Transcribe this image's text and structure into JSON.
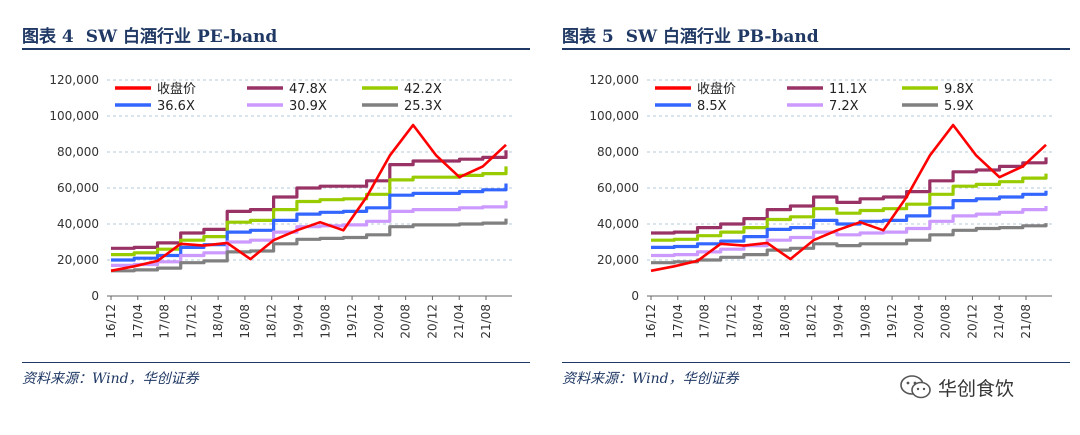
{
  "figures": [
    {
      "num_label": "图表 4",
      "title": "SW 白酒行业 PE-band",
      "source": "资料来源：Wind，华创证券"
    },
    {
      "num_label": "图表 5",
      "title": "SW 白酒行业 PB-band",
      "source": "资料来源：Wind，华创证券"
    }
  ],
  "watermark": {
    "text": "华创食饮",
    "icon": "wechat-icon"
  },
  "chart_data": [
    {
      "type": "line",
      "x_ticks": [
        "16/12",
        "17/04",
        "17/08",
        "17/12",
        "18/04",
        "18/08",
        "18/12",
        "19/04",
        "19/08",
        "19/12",
        "20/04",
        "20/08",
        "20/12",
        "21/04",
        "21/08"
      ],
      "y_ticks": [
        "0",
        "20,000",
        "40,000",
        "60,000",
        "80,000",
        "100,000",
        "120,000"
      ],
      "ylim": [
        0,
        120000
      ],
      "grid": true,
      "legend_position": "top-left",
      "series": [
        {
          "name": "收盘价",
          "color": "#ff0000",
          "values": [
            14000,
            16500,
            19500,
            29000,
            28000,
            29500,
            20500,
            31000,
            36500,
            41000,
            36500,
            55000,
            78000,
            95000,
            78000,
            66000,
            72000,
            84000
          ]
        },
        {
          "name": "47.8X",
          "color": "#993366",
          "values": [
            26500,
            27000,
            29500,
            35000,
            37000,
            47000,
            48000,
            55000,
            60000,
            61000,
            61000,
            64000,
            73000,
            75000,
            75000,
            76000,
            77000,
            81000
          ]
        },
        {
          "name": "42.2X",
          "color": "#99cc00",
          "values": [
            23000,
            24000,
            26000,
            31000,
            33000,
            41000,
            42000,
            48000,
            52500,
            53500,
            54000,
            56500,
            64500,
            66000,
            66000,
            67000,
            68000,
            72000
          ]
        },
        {
          "name": "36.6X",
          "color": "#3366ff",
          "values": [
            20000,
            21000,
            22500,
            27000,
            28500,
            35500,
            36500,
            42000,
            45500,
            46500,
            47000,
            49000,
            56000,
            57000,
            57000,
            58000,
            59000,
            62500
          ]
        },
        {
          "name": "30.9X",
          "color": "#cc99ff",
          "values": [
            17000,
            17500,
            19000,
            22500,
            24000,
            30000,
            31000,
            35500,
            38500,
            39000,
            39500,
            41500,
            47000,
            48000,
            48000,
            49000,
            49500,
            53000
          ]
        },
        {
          "name": "25.3X",
          "color": "#808080",
          "values": [
            14000,
            14500,
            15500,
            18500,
            19500,
            24500,
            25000,
            29000,
            31500,
            32000,
            32500,
            34000,
            38500,
            39500,
            39500,
            40000,
            40500,
            43000
          ]
        }
      ]
    },
    {
      "type": "line",
      "x_ticks": [
        "16/12",
        "17/04",
        "17/08",
        "17/12",
        "18/04",
        "18/08",
        "18/12",
        "19/04",
        "19/08",
        "19/12",
        "20/04",
        "20/08",
        "20/12",
        "21/04",
        "21/08"
      ],
      "y_ticks": [
        "0",
        "20,000",
        "40,000",
        "60,000",
        "80,000",
        "100,000",
        "120,000"
      ],
      "ylim": [
        0,
        120000
      ],
      "grid": true,
      "legend_position": "top-left",
      "series": [
        {
          "name": "收盘价",
          "color": "#ff0000",
          "values": [
            14000,
            16500,
            19500,
            29000,
            28000,
            29500,
            20500,
            31000,
            36500,
            41000,
            36500,
            55000,
            78000,
            95000,
            78000,
            66000,
            72000,
            84000
          ]
        },
        {
          "name": "11.1X",
          "color": "#993366",
          "values": [
            35000,
            35500,
            38000,
            40000,
            43000,
            48000,
            50000,
            55000,
            52000,
            54000,
            55000,
            58000,
            64000,
            69000,
            70000,
            72000,
            74000,
            77000
          ]
        },
        {
          "name": "9.8X",
          "color": "#99cc00",
          "values": [
            31000,
            31500,
            33500,
            35500,
            38000,
            42500,
            44000,
            48500,
            46000,
            47500,
            48500,
            51000,
            56500,
            61000,
            62000,
            63500,
            65500,
            68000
          ]
        },
        {
          "name": "8.5X",
          "color": "#3366ff",
          "values": [
            27000,
            27500,
            29000,
            30500,
            33000,
            37000,
            38000,
            42000,
            40000,
            41500,
            42000,
            44500,
            49000,
            53000,
            54000,
            55000,
            56500,
            58500
          ]
        },
        {
          "name": "7.2X",
          "color": "#cc99ff",
          "values": [
            22500,
            23000,
            24500,
            26000,
            28000,
            31000,
            32500,
            35500,
            34000,
            35000,
            35500,
            37500,
            41500,
            44500,
            45500,
            46500,
            48000,
            50000
          ]
        },
        {
          "name": "5.9X",
          "color": "#808080",
          "values": [
            18500,
            19000,
            20000,
            21500,
            23000,
            25500,
            26500,
            29000,
            28000,
            29000,
            29000,
            31000,
            34000,
            36500,
            37500,
            38000,
            39000,
            40500
          ]
        }
      ]
    }
  ]
}
